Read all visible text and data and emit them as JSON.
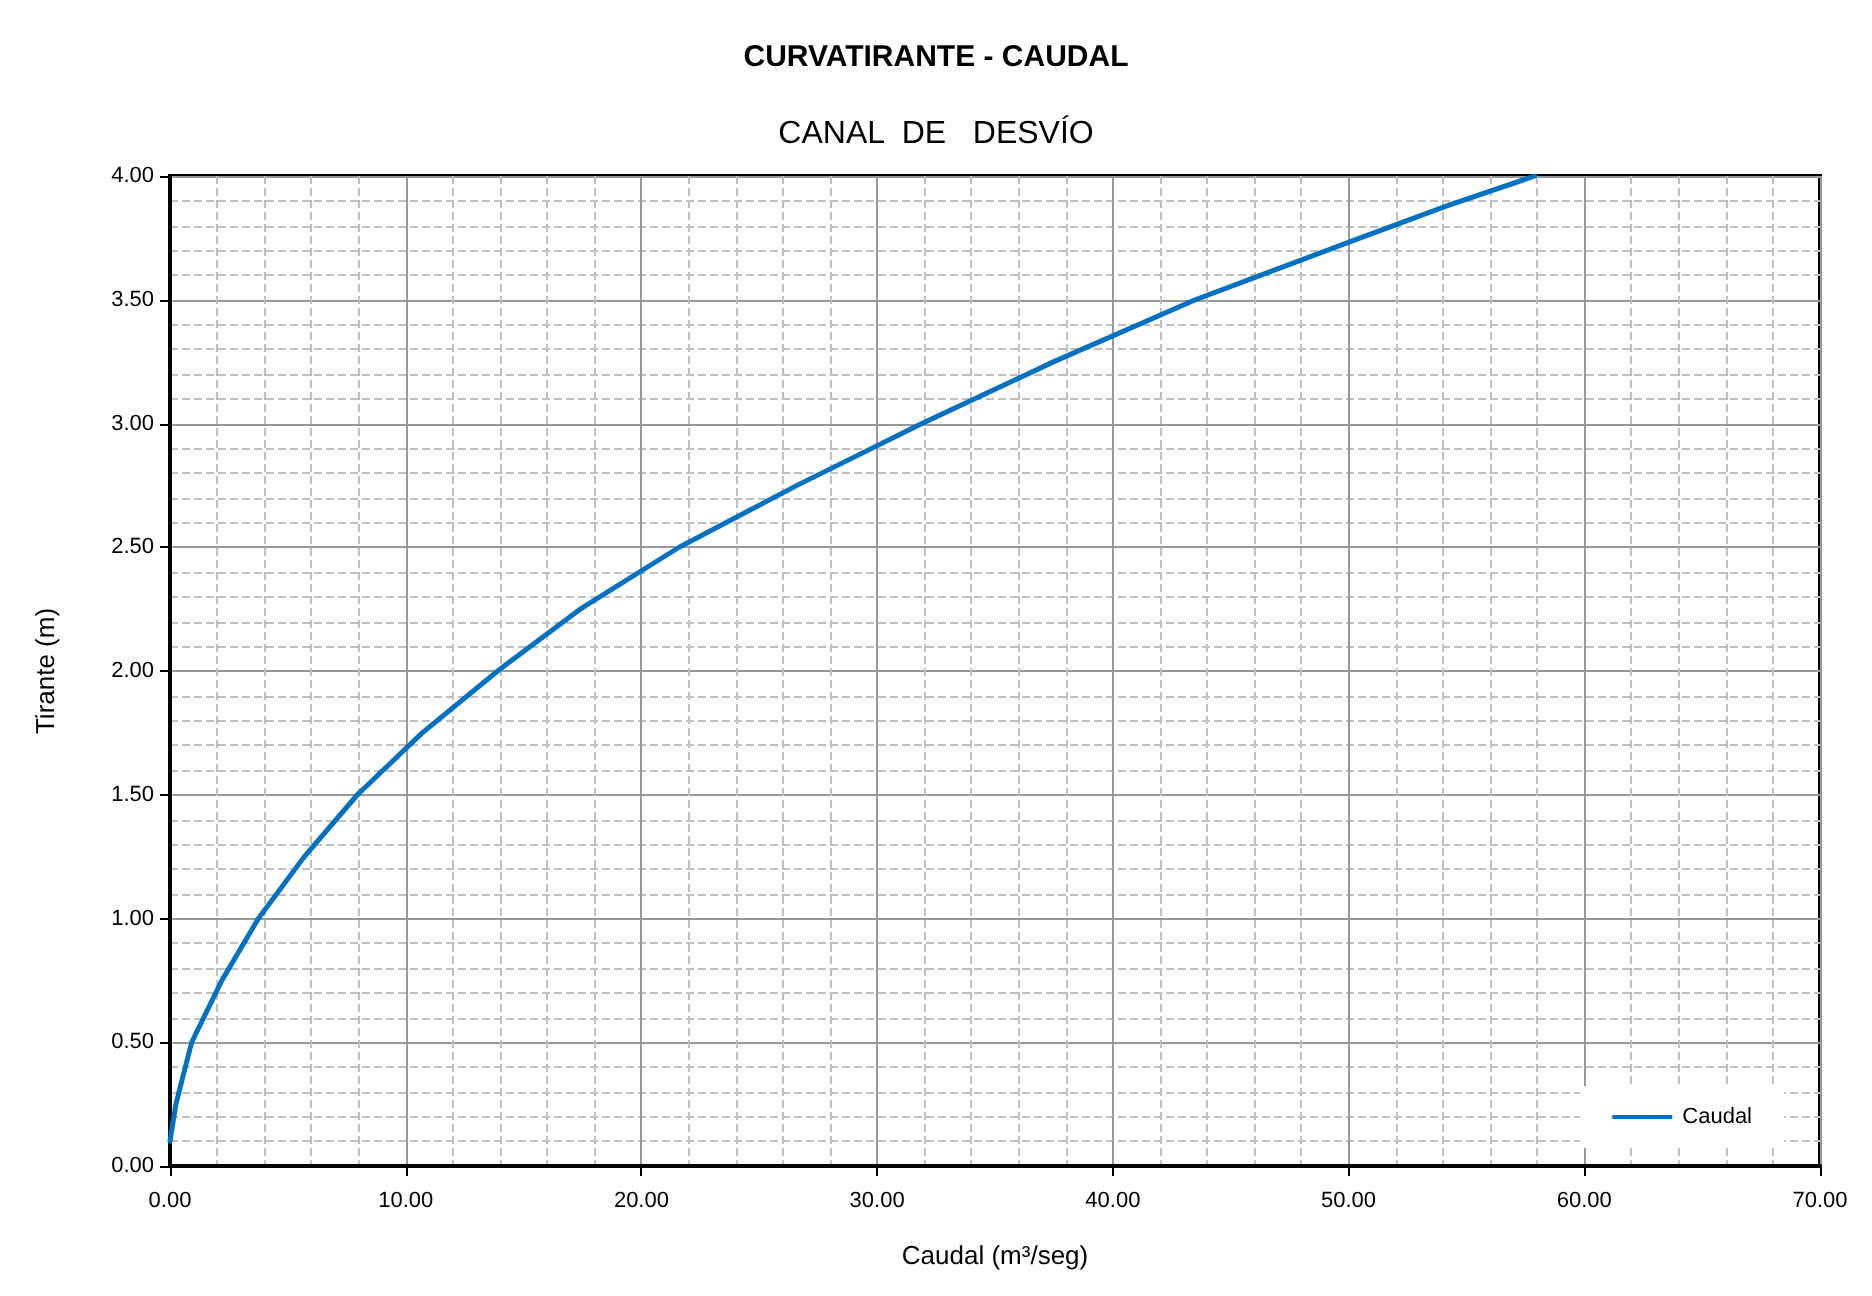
{
  "chart_data": {
    "type": "line",
    "title": "CURVATIRANTE - CAUDAL",
    "subtitle": "CANAL  DE   DESVÍO",
    "xlabel": "Caudal (m³/seg)",
    "ylabel": "Tirante (m)",
    "x": [
      0,
      0.25,
      0.92,
      2.2,
      3.75,
      5.7,
      7.95,
      10.7,
      13.9,
      17.4,
      21.6,
      26.6,
      31.9,
      37.5,
      43.5,
      50.5,
      54.2,
      57.9
    ],
    "series": [
      {
        "name": "Caudal",
        "color": "#0070c0",
        "values": [
          0.1,
          0.25,
          0.5,
          0.75,
          1.0,
          1.25,
          1.5,
          1.75,
          2.0,
          2.25,
          2.5,
          2.75,
          3.0,
          3.25,
          3.5,
          3.75,
          3.88,
          4.0
        ]
      }
    ],
    "xlim": [
      0,
      70
    ],
    "xticks": [
      {
        "value": 0,
        "label": "0.00"
      },
      {
        "value": 10,
        "label": "10.00"
      },
      {
        "value": 20,
        "label": "20.00"
      },
      {
        "value": 30,
        "label": "30.00"
      },
      {
        "value": 40,
        "label": "40.00"
      },
      {
        "value": 50,
        "label": "50.00"
      },
      {
        "value": 60,
        "label": "60.00"
      },
      {
        "value": 70,
        "label": "70.00"
      }
    ],
    "ylim": [
      0,
      4
    ],
    "yticks": [
      {
        "value": 0,
        "label": "0.00"
      },
      {
        "value": 0.5,
        "label": "0.50"
      },
      {
        "value": 1,
        "label": "1.00"
      },
      {
        "value": 1.5,
        "label": "1.50"
      },
      {
        "value": 2,
        "label": "2.00"
      },
      {
        "value": 2.5,
        "label": "2.50"
      },
      {
        "value": 3,
        "label": "3.00"
      },
      {
        "value": 3.5,
        "label": "3.50"
      },
      {
        "value": 4,
        "label": "4.00"
      }
    ],
    "grid": true,
    "legend": "bottom right",
    "marker": "none",
    "line_style": "solid"
  }
}
